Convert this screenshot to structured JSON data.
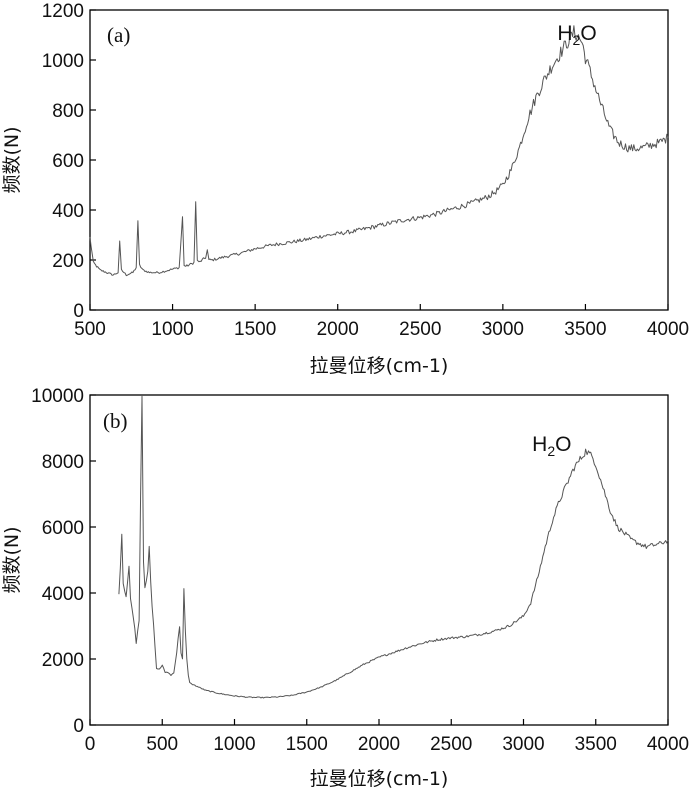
{
  "chart_data": [
    {
      "type": "line",
      "panel_label": "(a)",
      "xlabel": "拉曼位移(cm-1)",
      "ylabel": "频数(N)",
      "xlim": [
        500,
        4000
      ],
      "ylim": [
        0,
        1200
      ],
      "xticks": [
        500,
        1000,
        1500,
        2000,
        2500,
        3000,
        3500,
        4000
      ],
      "yticks": [
        0,
        200,
        400,
        600,
        800,
        1000,
        1200
      ],
      "annotation": {
        "text_main": "H",
        "text_sub": "2",
        "text_end": "O",
        "x": 3330,
        "y": 1080
      },
      "color": "#555555",
      "grid": false,
      "series": [
        {
          "x": [
            500,
            520,
            560,
            600,
            640,
            670,
            680,
            690,
            720,
            760,
            780,
            790,
            800,
            820,
            860,
            920,
            980,
            1040,
            1060,
            1070,
            1080,
            1100,
            1130,
            1140,
            1150,
            1160,
            1180,
            1200,
            1210,
            1220,
            1240,
            1300,
            1400,
            1500,
            1600,
            1700,
            1800,
            1900,
            2000,
            2100,
            2200,
            2300,
            2400,
            2500,
            2600,
            2700,
            2800,
            2900,
            2950,
            3000,
            3050,
            3100,
            3150,
            3200,
            3250,
            3300,
            3350,
            3400,
            3430,
            3450,
            3480,
            3500,
            3550,
            3600,
            3650,
            3700,
            3750,
            3800,
            3850,
            3900,
            3950,
            4000
          ],
          "y": [
            290,
            190,
            160,
            150,
            140,
            150,
            270,
            160,
            140,
            150,
            170,
            350,
            180,
            160,
            150,
            150,
            160,
            170,
            370,
            180,
            175,
            180,
            190,
            430,
            200,
            190,
            200,
            210,
            240,
            200,
            200,
            210,
            225,
            245,
            260,
            270,
            280,
            295,
            305,
            315,
            330,
            345,
            360,
            370,
            385,
            405,
            425,
            450,
            470,
            500,
            560,
            650,
            760,
            850,
            920,
            980,
            1030,
            1080,
            1110,
            1100,
            1070,
            1010,
            910,
            810,
            720,
            670,
            650,
            645,
            650,
            660,
            670,
            690
          ]
        }
      ]
    },
    {
      "type": "line",
      "panel_label": "(b)",
      "xlabel": "拉曼位移(cm-1)",
      "ylabel": "频数(N)",
      "xlim": [
        0,
        4000
      ],
      "ylim": [
        0,
        10000
      ],
      "xticks": [
        0,
        500,
        1000,
        1500,
        2000,
        2500,
        3000,
        3500,
        4000
      ],
      "yticks": [
        0,
        2000,
        4000,
        6000,
        8000,
        10000
      ],
      "annotation": {
        "text_main": "H",
        "text_sub": "2",
        "text_end": "O",
        "x": 3060,
        "y": 8300
      },
      "color": "#555555",
      "grid": false,
      "series": [
        {
          "x": [
            200,
            210,
            220,
            230,
            250,
            270,
            280,
            300,
            320,
            340,
            350,
            360,
            370,
            380,
            400,
            410,
            420,
            430,
            450,
            460,
            480,
            500,
            520,
            540,
            560,
            580,
            600,
            620,
            630,
            640,
            650,
            660,
            670,
            680,
            690,
            700,
            750,
            800,
            900,
            1000,
            1100,
            1200,
            1300,
            1400,
            1500,
            1600,
            1700,
            1800,
            1900,
            2000,
            2100,
            2200,
            2300,
            2400,
            2500,
            2600,
            2700,
            2800,
            2900,
            3000,
            3050,
            3100,
            3150,
            3200,
            3250,
            3300,
            3350,
            3400,
            3430,
            3450,
            3480,
            3500,
            3550,
            3600,
            3650,
            3700,
            3750,
            3800,
            3850,
            3900,
            3950,
            4000
          ],
          "y": [
            4000,
            4800,
            5800,
            4300,
            3900,
            4800,
            3800,
            3300,
            2500,
            3200,
            7000,
            10000,
            5000,
            4200,
            4600,
            5400,
            4300,
            3600,
            2400,
            1700,
            1700,
            1800,
            1600,
            1600,
            1500,
            1600,
            2200,
            3000,
            2200,
            2000,
            4100,
            2800,
            2000,
            1500,
            1300,
            1250,
            1150,
            1050,
            950,
            880,
            840,
            830,
            850,
            900,
            1000,
            1150,
            1350,
            1600,
            1850,
            2050,
            2200,
            2350,
            2480,
            2580,
            2640,
            2680,
            2750,
            2850,
            3000,
            3300,
            3700,
            4500,
            5400,
            6200,
            6800,
            7300,
            7800,
            8100,
            8300,
            8250,
            8100,
            7900,
            7200,
            6500,
            6000,
            5800,
            5600,
            5500,
            5400,
            5450,
            5500,
            5600
          ]
        }
      ]
    }
  ]
}
